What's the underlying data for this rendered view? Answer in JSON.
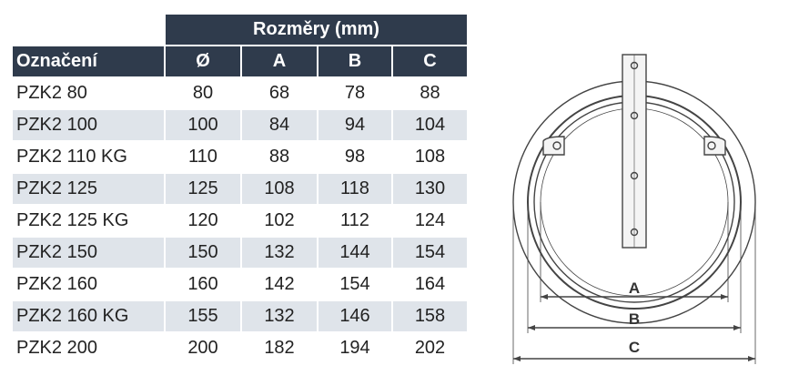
{
  "table": {
    "group_header": "Rozměry (mm)",
    "headers": [
      "Označení",
      "Ø",
      "A",
      "B",
      "C"
    ],
    "rows": [
      [
        "PZK2 80",
        80,
        68,
        78,
        88
      ],
      [
        "PZK2 100",
        100,
        84,
        94,
        104
      ],
      [
        "PZK2 110 KG",
        110,
        88,
        98,
        108
      ],
      [
        "PZK2 125",
        125,
        108,
        118,
        130
      ],
      [
        "PZK2 125 KG",
        120,
        102,
        112,
        124
      ],
      [
        "PZK2 150",
        150,
        132,
        144,
        154
      ],
      [
        "PZK2 160",
        160,
        142,
        154,
        164
      ],
      [
        "PZK2 160 KG",
        155,
        132,
        146,
        158
      ],
      [
        "PZK2 200",
        200,
        182,
        194,
        202
      ]
    ]
  },
  "drawing": {
    "labels": [
      "A",
      "B",
      "C"
    ]
  }
}
